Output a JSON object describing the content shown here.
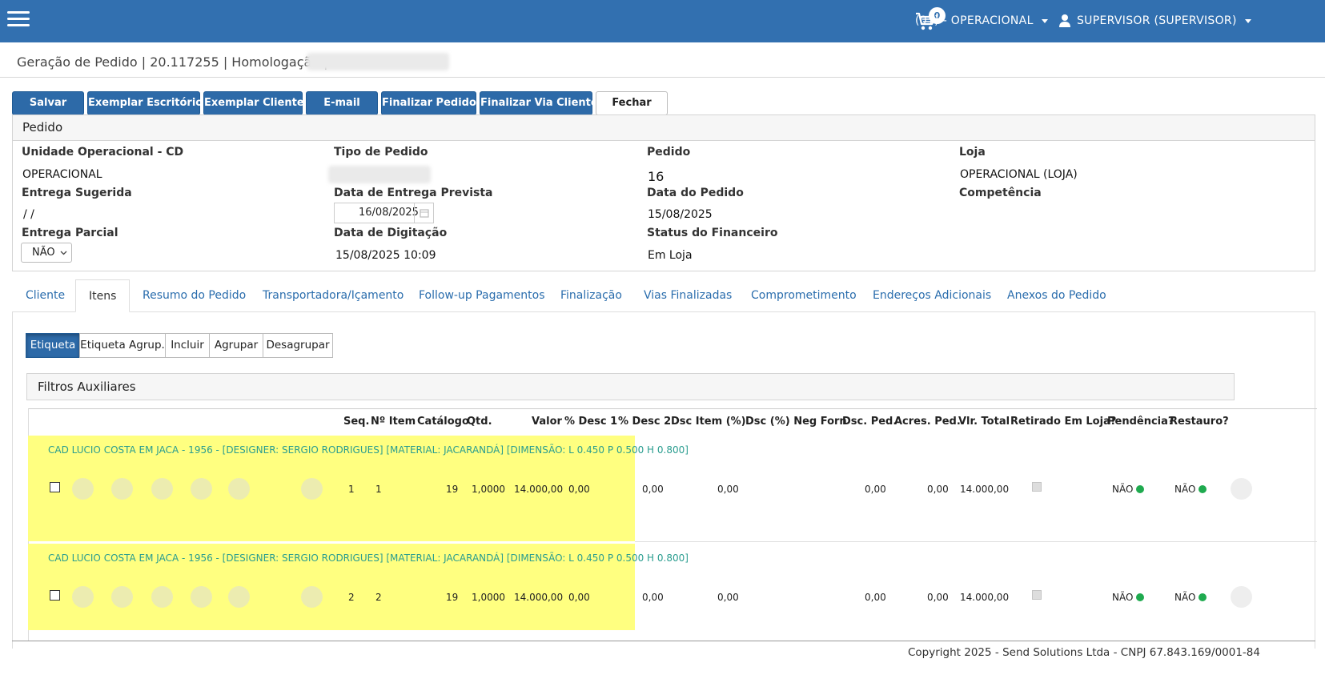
{
  "topbar": {
    "cart_count": "0",
    "unit_menu": "(01) - OPERACIONAL",
    "user_menu": "SUPERVISOR (SUPERVISOR)"
  },
  "breadcrumb": "Geração de Pedido | 20.117255 | Homologação |",
  "toolbar": {
    "buttons": [
      "Salvar",
      "Exemplar Escritório",
      "Exemplar Cliente",
      "E-mail",
      "Finalizar Pedido",
      "Finalizar Via Cliente",
      "Fechar"
    ]
  },
  "pedido": {
    "panel_title": "Pedido",
    "unidade_label": "Unidade Operacional - CD",
    "unidade_value": "OPERACIONAL",
    "tipo_label": "Tipo de Pedido",
    "pedido_label": "Pedido",
    "pedido_value": "16",
    "loja_label": "Loja",
    "loja_value": "OPERACIONAL (LOJA)",
    "entrega_sugerida_label": "Entrega Sugerida",
    "entrega_sugerida_value": "/ /",
    "data_entrega_prevista_label": "Data de Entrega Prevista",
    "data_entrega_prevista_value": "16/08/2025",
    "data_pedido_label": "Data do Pedido",
    "data_pedido_value": "15/08/2025",
    "competencia_label": "Competência",
    "entrega_parcial_label": "Entrega Parcial",
    "entrega_parcial_value": "NÃO",
    "data_digitacao_label": "Data de Digitação",
    "data_digitacao_value": "15/08/2025 10:09",
    "status_financeiro_label": "Status do Financeiro",
    "status_financeiro_value": "Em Loja"
  },
  "tabs": [
    "Cliente",
    "Itens",
    "Resumo do Pedido",
    "Transportadora/Içamento",
    "Follow-up Pagamentos",
    "Finalização",
    "Vias Finalizadas",
    "Comprometimento",
    "Endereços Adicionais",
    "Anexos do Pedido"
  ],
  "active_tab": "Itens",
  "itens_buttons": [
    "Etiqueta",
    "Etiqueta Agrup.",
    "Incluir",
    "Agrupar",
    "Desagrupar"
  ],
  "filtros_title": "Filtros Auxiliares",
  "table": {
    "headers": [
      "Seq.",
      "Nº Item",
      "Catálogo",
      "Qtd.",
      "Valor",
      "% Desc 1",
      "% Desc 2",
      "Dsc Item (%)",
      "Dsc (%) Neg Forn",
      "Dsc. Ped.",
      "Acres. Ped.",
      "Vlr. Total",
      "Retirado Em Loja?",
      "Pendência?",
      "Restauro?"
    ],
    "rows": [
      {
        "description": "CAD LUCIO COSTA EM JACA - 1956 - [DESIGNER: SERGIO RODRIGUES] [MATERIAL: JACARANDÁ] [DIMENSÃO: L 0.450 P 0.500 H 0.800]",
        "seq": "1",
        "item": "1",
        "catalogo": "19",
        "qtd": "1,0000",
        "valor": "14.000,00",
        "desc1": "0,00",
        "desc2": "0,00",
        "dsc_item": "0,00",
        "dsc_neg_forn": "",
        "dsc_ped": "0,00",
        "acres_ped": "0,00",
        "vlr_total": "14.000,00",
        "pendencia": "NÃO",
        "restauro": "NÃO"
      },
      {
        "description": "CAD LUCIO COSTA EM JACA - 1956 - [DESIGNER: SERGIO RODRIGUES] [MATERIAL: JACARANDÁ] [DIMENSÃO: L 0.450 P 0.500 H 0.800]",
        "seq": "2",
        "item": "2",
        "catalogo": "19",
        "qtd": "1,0000",
        "valor": "14.000,00",
        "desc1": "0,00",
        "desc2": "0,00",
        "dsc_item": "0,00",
        "dsc_neg_forn": "",
        "dsc_ped": "0,00",
        "acres_ped": "0,00",
        "vlr_total": "14.000,00",
        "pendencia": "NÃO",
        "restauro": "NÃO"
      }
    ]
  },
  "footer": "Copyright 2025 - Send Solutions Ltda - CNPJ 67.843.169/0001-84",
  "colors": {
    "primary": "#3270b0",
    "button": "#2d6aa8",
    "highlight": "#ffff80",
    "status_green": "#1faa4f",
    "link": "#2a6dad",
    "item_text": "#2a9d8f"
  }
}
